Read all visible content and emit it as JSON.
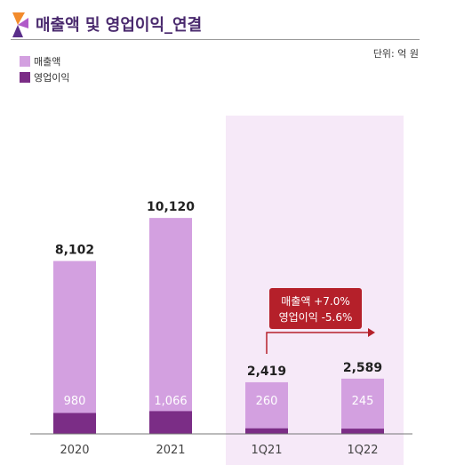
{
  "header": {
    "title": "매출액 및 영업이익_연결",
    "unit": "단위: 억 원"
  },
  "colors": {
    "revenue": "#d3a0e0",
    "operating_income": "#7b2d86",
    "highlight_bg": "#f6e9f8",
    "callout": "#b5202a",
    "title": "#4a2a6e"
  },
  "icons": {
    "logo": "ribbon-logo-icon"
  },
  "callout": {
    "line1": "매출액 +7.0%",
    "line2": "영업이익 -5.6%"
  },
  "chart_data": {
    "type": "bar",
    "categories": [
      "2020",
      "2021",
      "1Q21",
      "1Q22"
    ],
    "series": [
      {
        "name": "매출액",
        "values": [
          8102,
          10120,
          2419,
          2589
        ],
        "labels": [
          "8,102",
          "10,120",
          "2,419",
          "2,589"
        ]
      },
      {
        "name": "영업이익",
        "values": [
          980,
          1066,
          260,
          245
        ],
        "labels": [
          "980",
          "1,066",
          "260",
          "245"
        ]
      }
    ],
    "highlighted_categories": [
      "1Q21",
      "1Q22"
    ],
    "legend_position": "top-left",
    "grid": false
  }
}
